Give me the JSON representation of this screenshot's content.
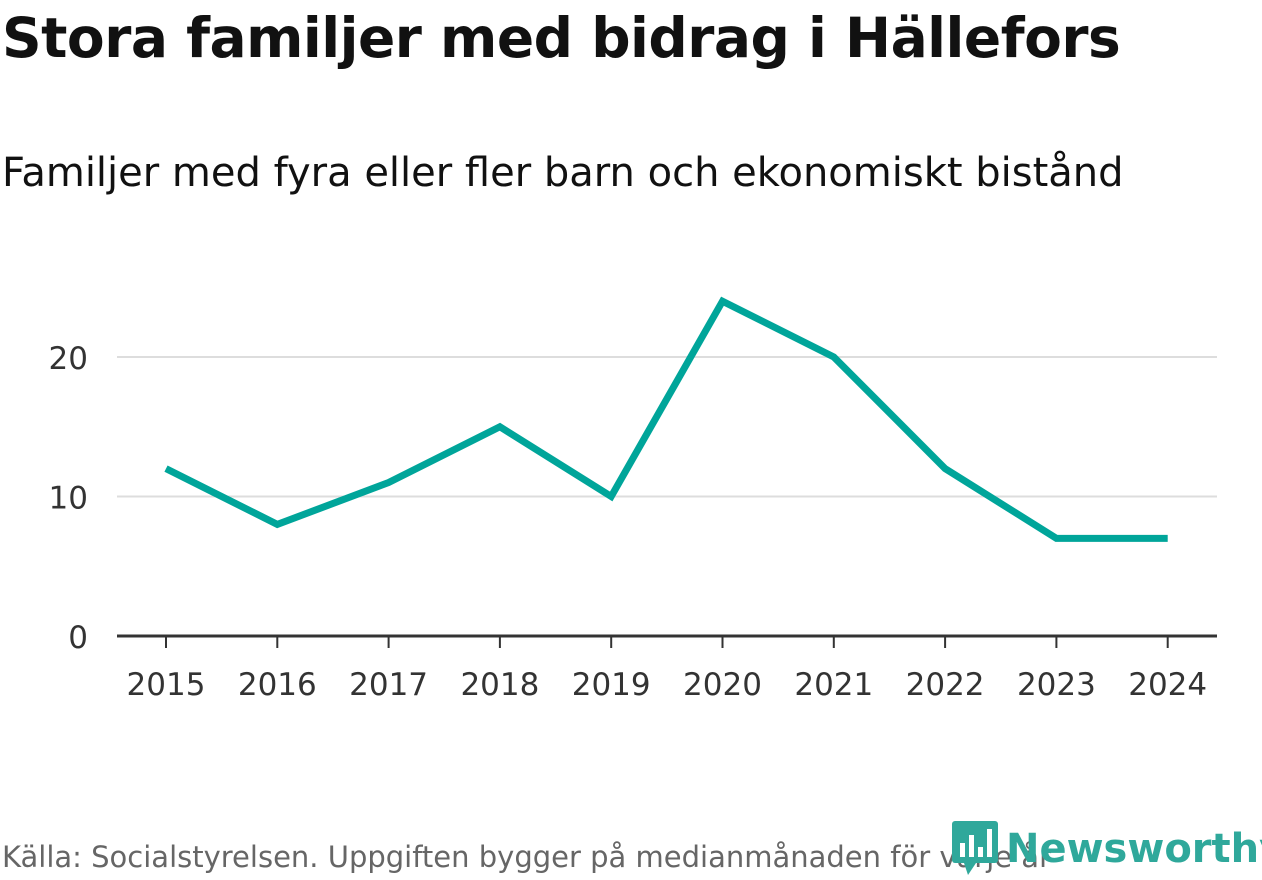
{
  "title": "Stora familjer med bidrag i Hällefors",
  "subtitle": "Familjer med fyra eller fler barn och ekonomiskt bistånd",
  "source": "Källa: Socialstyrelsen. Uppgiften bygger på medianmånaden för varje år",
  "brand": {
    "name": "Newsworthy",
    "icon": "newsworthy-logo-icon"
  },
  "colors": {
    "line": "#00a59a",
    "grid": "#dddddd",
    "axis": "#333333",
    "brand": "#2fa89b"
  },
  "chart_data": {
    "type": "line",
    "categories": [
      "2015",
      "2016",
      "2017",
      "2018",
      "2019",
      "2020",
      "2021",
      "2022",
      "2023",
      "2024"
    ],
    "series": [
      {
        "values": [
          12,
          8,
          11,
          15,
          10,
          24,
          20,
          12,
          7,
          7
        ]
      }
    ],
    "yticks": [
      0,
      10,
      20
    ],
    "ylim": [
      0,
      26
    ],
    "xlabel": "",
    "ylabel": "",
    "grid": true,
    "legend": "none"
  }
}
